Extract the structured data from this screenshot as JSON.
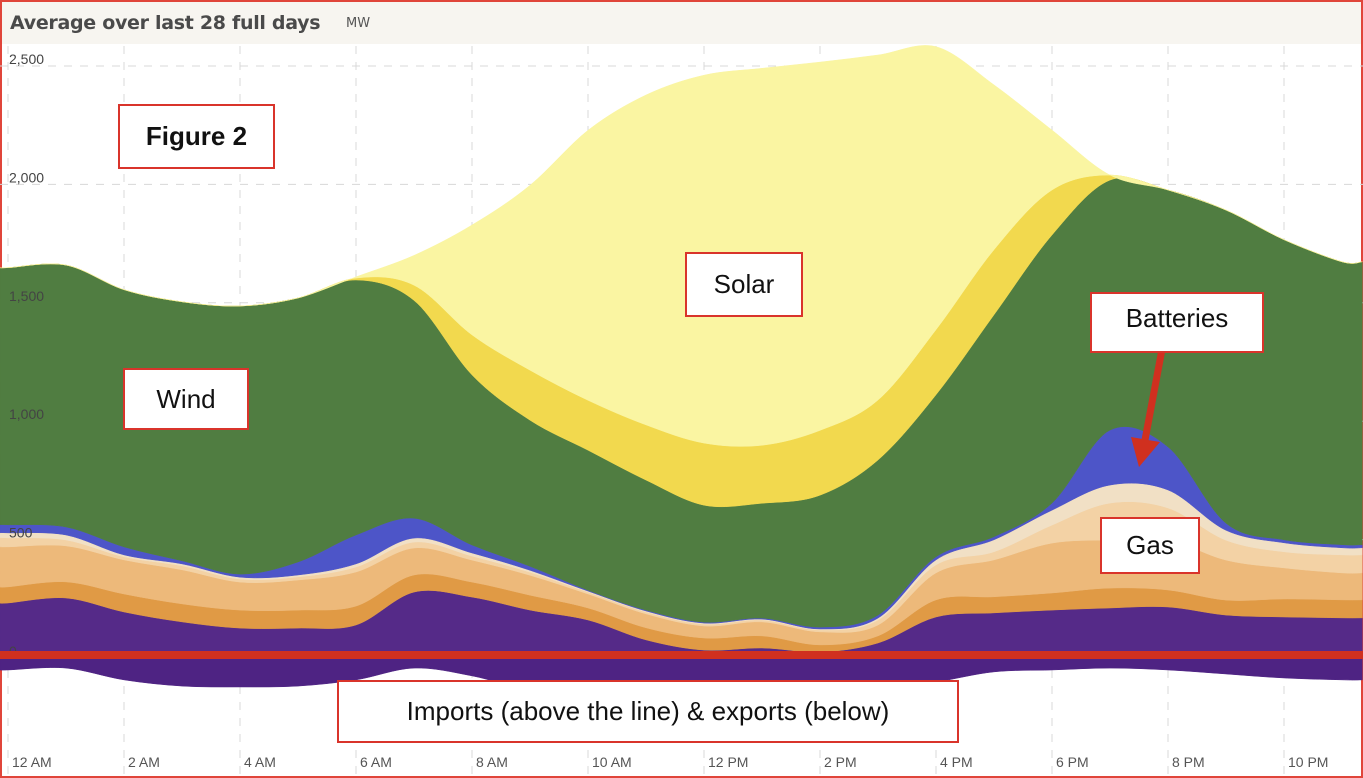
{
  "header": {
    "title": "Average over last 28 full days",
    "unit": "MW"
  },
  "annotations": {
    "figure": "Figure 2",
    "wind": "Wind",
    "solar": "Solar",
    "batteries": "Batteries",
    "gas": "Gas",
    "imports": "Imports (above the line) & exports (below)"
  },
  "colors": {
    "zero_line": "#d0301f",
    "annotation_border": "#d9342b",
    "arrow": "#d0301f"
  },
  "chart_data": {
    "type": "area",
    "stacked": true,
    "title": "Average over last 28 full days",
    "ylabel": "MW",
    "x": [
      0,
      1,
      2,
      3,
      4,
      5,
      6,
      7,
      8,
      9,
      10,
      11,
      12,
      13,
      14,
      15,
      16,
      17,
      18,
      19,
      20,
      21,
      22,
      23
    ],
    "xlim": [
      0,
      23.35
    ],
    "ylim": [
      -250,
      2500
    ],
    "x_ticks": [
      0,
      2,
      4,
      6,
      8,
      10,
      12,
      14,
      16,
      18,
      20,
      22
    ],
    "x_tick_labels": [
      "12 AM",
      "2 AM",
      "4 AM",
      "6 AM",
      "8 AM",
      "10 AM",
      "12 PM",
      "2 PM",
      "4 PM",
      "6 PM",
      "8 PM",
      "10 PM"
    ],
    "y_ticks": [
      0,
      500,
      1000,
      1500,
      2000,
      2500
    ],
    "y_tick_labels": [
      "0",
      "500",
      "1,000",
      "1,500",
      "2,000",
      "2,500"
    ],
    "grid": true,
    "negative_series": {
      "color": "#4e2383",
      "values": [
        -76,
        -68,
        -118,
        -144,
        -148,
        -144,
        -118,
        -68,
        -101,
        -160,
        -160,
        -160,
        -160,
        -160,
        -152,
        -160,
        -127,
        -84,
        -76,
        -68,
        -76,
        -93,
        -110,
        -118
      ]
    },
    "series": [
      {
        "color": "#552a88",
        "values": [
          207,
          228,
          169,
          127,
          101,
          101,
          114,
          253,
          232,
          177,
          135,
          51,
          8,
          17,
          0,
          38,
          148,
          165,
          177,
          186,
          190,
          156,
          148,
          144
        ]
      },
      {
        "color": "#e09a45",
        "values": [
          68,
          68,
          76,
          76,
          76,
          76,
          80,
          72,
          63,
          63,
          51,
          51,
          51,
          51,
          30,
          30,
          72,
          68,
          72,
          84,
          72,
          63,
          76,
          76
        ]
      },
      {
        "color": "#edb97a",
        "values": [
          169,
          152,
          144,
          144,
          118,
          127,
          144,
          114,
          93,
          84,
          59,
          59,
          51,
          59,
          55,
          46,
          114,
          156,
          211,
          203,
          211,
          169,
          131,
          114
        ]
      },
      {
        "color": "#f3d2a5",
        "values": [
          38,
          25,
          13,
          17,
          13,
          13,
          21,
          25,
          17,
          13,
          8,
          8,
          8,
          8,
          8,
          21,
          34,
          34,
          76,
          156,
          135,
          84,
          68,
          76
        ]
      },
      {
        "color": "#f1e0c5",
        "values": [
          21,
          21,
          8,
          8,
          8,
          8,
          13,
          17,
          13,
          8,
          4,
          4,
          4,
          4,
          4,
          8,
          21,
          51,
          63,
          76,
          76,
          42,
          38,
          30
        ]
      },
      {
        "color": "#4d55c8",
        "values": [
          34,
          34,
          34,
          13,
          13,
          55,
          122,
          84,
          34,
          17,
          4,
          4,
          4,
          4,
          8,
          13,
          13,
          13,
          30,
          232,
          182,
          30,
          13,
          13
        ]
      },
      {
        "color": "#507d41",
        "values": [
          1086,
          1106,
          1086,
          1094,
          1132,
          1115,
          1077,
          920,
          718,
          617,
          591,
          549,
          494,
          485,
          557,
          655,
          684,
          937,
          1132,
          1056,
          1085,
          1322,
          1267,
          1195
        ]
      },
      {
        "color": "#f2d94e",
        "values": [
          0,
          0,
          0,
          0,
          0,
          0,
          8,
          64,
          169,
          211,
          211,
          233,
          262,
          245,
          274,
          253,
          275,
          275,
          190,
          21,
          0,
          0,
          0,
          0
        ]
      },
      {
        "color": "#faf5a2",
        "values": [
          0,
          0,
          0,
          0,
          0,
          0,
          5,
          126,
          464,
          781,
          1140,
          1393,
          1554,
          1592,
          1555,
          1457,
          1195,
          696,
          253,
          0,
          0,
          0,
          0,
          0
        ]
      }
    ]
  }
}
